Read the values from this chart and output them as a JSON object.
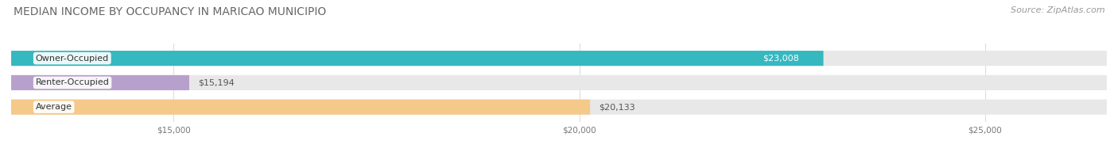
{
  "title": "MEDIAN INCOME BY OCCUPANCY IN MARICAO MUNICIPIO",
  "source": "Source: ZipAtlas.com",
  "categories": [
    "Owner-Occupied",
    "Renter-Occupied",
    "Average"
  ],
  "values": [
    23008,
    15194,
    20133
  ],
  "bar_colors": [
    "#35b8c0",
    "#b8a0cc",
    "#f5c98a"
  ],
  "bar_bg_color": "#e8e8e8",
  "value_labels": [
    "$23,008",
    "$15,194",
    "$20,133"
  ],
  "value_inside": [
    true,
    false,
    false
  ],
  "value_colors_inside": [
    "#ffffff",
    "#555555",
    "#555555"
  ],
  "xmin": 13000,
  "xmax": 26500,
  "xticks": [
    15000,
    20000,
    25000
  ],
  "xtick_labels": [
    "$15,000",
    "$20,000",
    "$25,000"
  ],
  "title_fontsize": 10,
  "source_fontsize": 8,
  "label_fontsize": 8,
  "value_fontsize": 8,
  "bar_height": 0.62,
  "background_color": "#ffffff"
}
